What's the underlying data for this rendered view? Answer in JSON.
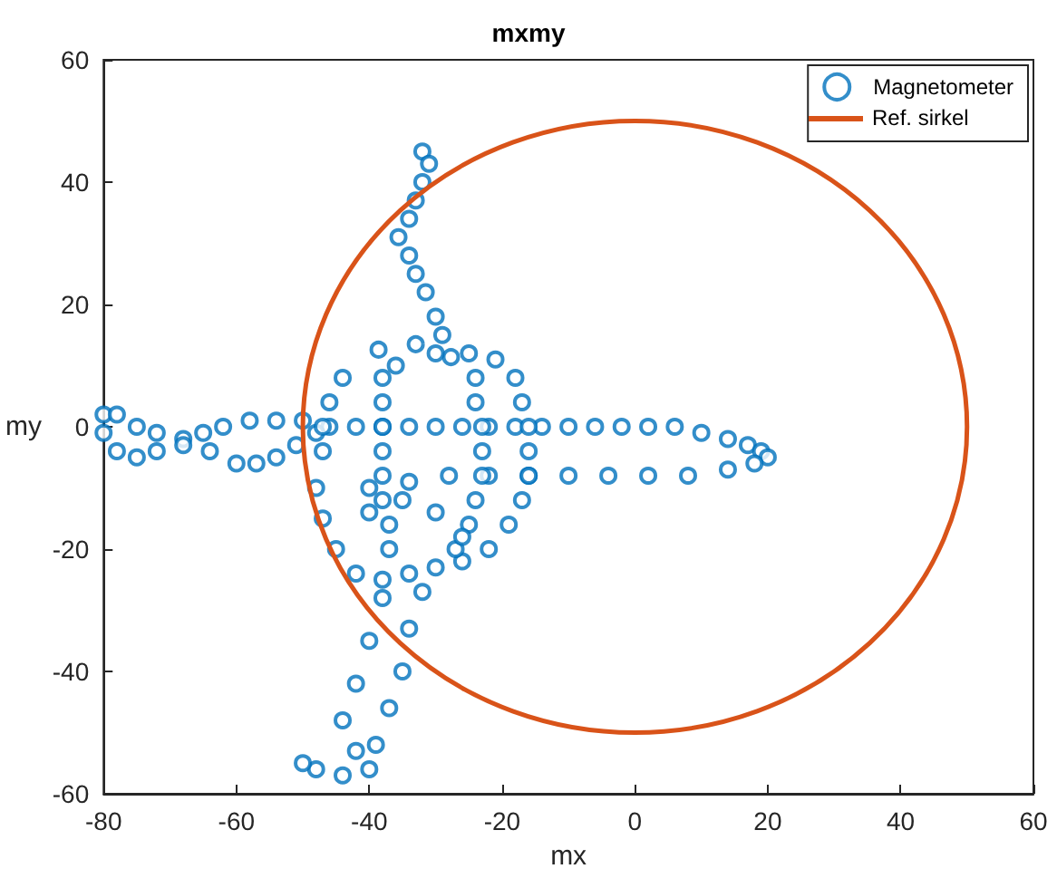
{
  "chart_data": {
    "type": "scatter",
    "title": "mxmy",
    "xlabel": "mx",
    "ylabel": "my",
    "xlim": [
      -80,
      60
    ],
    "xticks": [
      -80,
      -60,
      -40,
      -20,
      0,
      20,
      40,
      60
    ],
    "ylim": [
      -60,
      60
    ],
    "yticks": [
      -60,
      -40,
      -20,
      0,
      20,
      40,
      60
    ],
    "grid": false,
    "legend": "top right",
    "marker": "circle",
    "annotations": [
      "Ref. sirkel"
    ],
    "series": [
      {
        "name": "Magnetometer",
        "color": "#0072bd",
        "x": [
          -80,
          -78,
          -75,
          -72,
          -68,
          -65,
          -62,
          -58,
          -54,
          -50,
          -46,
          -42,
          -38,
          -34,
          -30,
          -26,
          -22,
          -18,
          -14,
          -10,
          -6,
          -2,
          2,
          6,
          10,
          14,
          17,
          19,
          20,
          -80,
          -78,
          -75,
          -72,
          -68,
          -64,
          -60,
          -57,
          -54,
          -51,
          -48,
          -40,
          -34,
          -28,
          -22,
          -16,
          -10,
          -4,
          2,
          8,
          14,
          18,
          -32,
          -31,
          -32,
          -33,
          -34,
          -35.6,
          -34,
          -33,
          -31.5,
          -30,
          -29,
          -27.7,
          -33,
          -38.6,
          -36,
          -44,
          -46,
          -47,
          -47,
          -48,
          -47,
          -45,
          -42,
          -38,
          -34,
          -30,
          -26,
          -22,
          -19,
          -17,
          -16,
          -16,
          -16,
          -17,
          -18,
          -21,
          -25,
          -30,
          -38,
          -38,
          -38,
          -38,
          -38,
          -38,
          -37,
          -37,
          -24,
          -24,
          -23,
          -23,
          -23,
          -24,
          -25,
          -27,
          -40,
          -35,
          -30,
          -26,
          -38,
          -40,
          -42,
          -44,
          -42,
          -40,
          -44,
          -48,
          -50,
          -32,
          -34,
          -35,
          -37,
          -39
        ],
        "values": [
          2,
          2,
          0,
          -1,
          -2,
          -1,
          0,
          1,
          1,
          1,
          0,
          0,
          0,
          0,
          0,
          0,
          0,
          0,
          0,
          0,
          0,
          0,
          0,
          0,
          -1,
          -2,
          -3,
          -4,
          -5,
          -1,
          -4,
          -5,
          -4,
          -3,
          -4,
          -6,
          -6,
          -5,
          -3,
          -1,
          -10,
          -9,
          -8,
          -8,
          -8,
          -8,
          -8,
          -8,
          -8,
          -7,
          -6,
          45,
          43,
          40,
          37,
          34,
          31,
          28,
          25,
          22,
          18,
          15,
          11.4,
          13.5,
          12.6,
          10,
          8,
          4,
          0,
          -4,
          -10,
          -15,
          -20,
          -24,
          -25,
          -24,
          -23,
          -22,
          -20,
          -16,
          -12,
          -8,
          -4,
          0,
          4,
          8,
          11,
          12,
          12,
          8,
          4,
          0,
          -4,
          -8,
          -12,
          -16,
          -20,
          8,
          4,
          0,
          -4,
          -8,
          -12,
          -16,
          -20,
          -14,
          -12,
          -14,
          -18,
          -28,
          -35,
          -42,
          -48,
          -53,
          -56,
          -57,
          -56,
          -55,
          -27,
          -33,
          -40,
          -46,
          -52
        ]
      }
    ]
  }
}
